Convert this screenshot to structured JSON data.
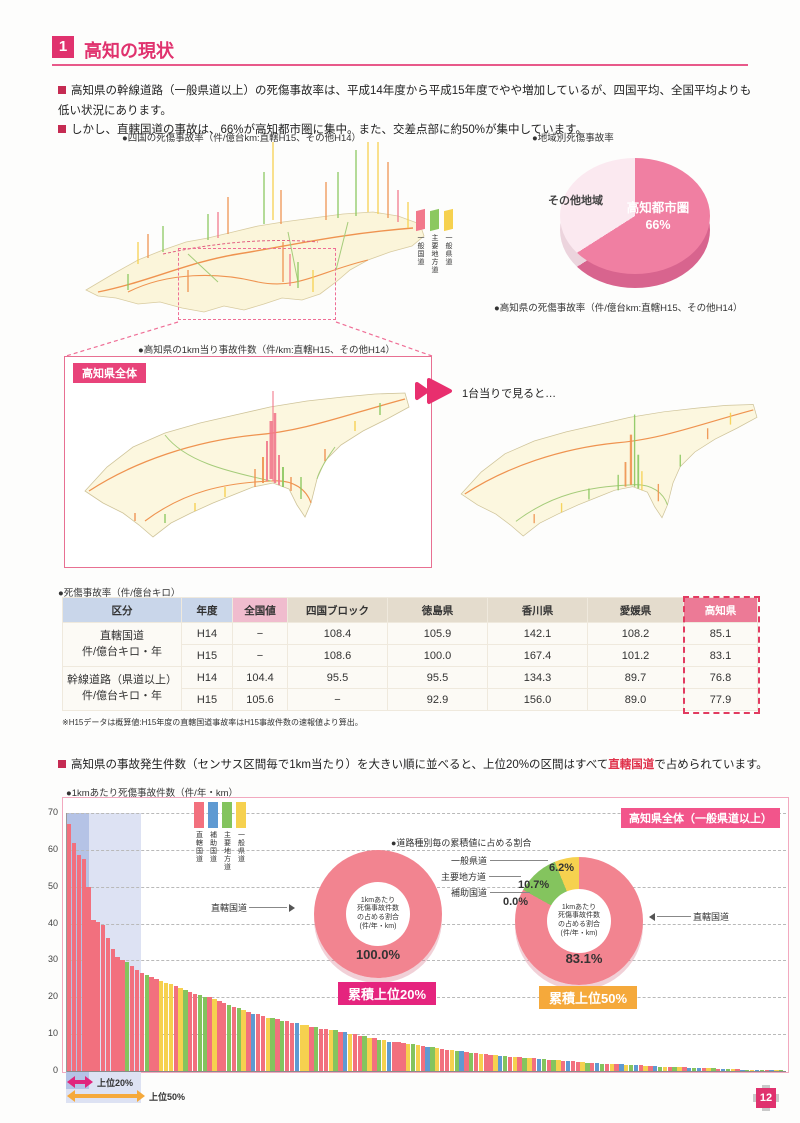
{
  "page": {
    "number": "12"
  },
  "header": {
    "section_no": "1",
    "title": "高知の現状"
  },
  "intro": {
    "bullets": [
      "高知県の幹線道路（一般県道以上）の死傷事故率は、平成14年度から平成15年度でやや増加しているが、四国平均、全国平均よりも低い状況にあります。",
      "しかし、直轄国道の事故は、66%が高知都市圏に集中。また、交差点部に約50%が集中しています。"
    ]
  },
  "top_figures": {
    "shikoku_map_title": "●四国の死傷事故率（件/億台km:直轄H15、その他H14）",
    "map_legend": [
      {
        "label": "一般国道",
        "color": "#f2798c"
      },
      {
        "label": "主要地方道",
        "color": "#8cc860"
      },
      {
        "label": "一般県道",
        "color": "#f6d14f"
      }
    ],
    "pie_title": "●地域別死傷事故率",
    "pie_caption": "●高知県の死傷事故率（件/億台km:直轄H15、その他H14）"
  },
  "kochi_figure": {
    "title": "●高知県の1km当り事故件数（件/km:直轄H15、その他H14）",
    "box_label": "高知県全体",
    "arrow_note": "1台当りで見ると…"
  },
  "table": {
    "title": "●死傷事故率（件/億台キロ）",
    "headers": [
      "区分",
      "年度",
      "全国値",
      "四国ブロック",
      "徳島県",
      "香川県",
      "愛媛県",
      "高知県"
    ],
    "row_groups": [
      {
        "label": "直轄国道",
        "sub": "件/億台キロ・年",
        "rows": [
          {
            "year": "H14",
            "values": [
              "−",
              "108.4",
              "105.9",
              "142.1",
              "108.2",
              "85.1"
            ]
          },
          {
            "year": "H15",
            "values": [
              "−",
              "108.6",
              "100.0",
              "167.4",
              "101.2",
              "83.1"
            ]
          }
        ]
      },
      {
        "label": "幹線道路（県道以上）",
        "sub": "件/億台キロ・年",
        "rows": [
          {
            "year": "H14",
            "values": [
              "104.4",
              "95.5",
              "95.5",
              "134.3",
              "89.7",
              "76.8"
            ]
          },
          {
            "year": "H15",
            "values": [
              "105.6",
              "−",
              "92.9",
              "156.0",
              "89.0",
              "77.9"
            ]
          }
        ]
      }
    ],
    "footnote": "※H15データは概算値:H15年度の直轄国道事故率はH15事故件数の速報値より算出。"
  },
  "bottom_section": {
    "bullet_pre": "高知県の事故発生件数（センサス区間毎で1km当たり）を大きい順に並べると、上位20%の区間はすべて",
    "bullet_em": "直轄国道",
    "bullet_post": "で占められています。",
    "chart_label": "●1kmあたり死傷事故件数（件/年・km）",
    "chart_badge": "高知県全体（一般県道以上）",
    "donut_title": "●道路種別毎の累積値に占める割合",
    "range20_label": "上位20%",
    "range50_label": "上位50%"
  },
  "chart_data": {
    "region_pie": {
      "type": "pie",
      "title": "地域別死傷事故率",
      "slices": [
        {
          "label": "高知都市圏",
          "pct": 66,
          "color": "#f07fa2"
        },
        {
          "label": "その他地域",
          "pct": 34,
          "color": "#fbe9f0"
        }
      ],
      "slices_side": [
        {
          "pct": 66,
          "color": "#d8648e"
        },
        {
          "pct": 34,
          "color": "#ecd4dd"
        }
      ],
      "main_label": "高知都市圏",
      "main_pct_label": "66%",
      "other_label": "その他地域"
    },
    "accident_bars": {
      "type": "bar",
      "title": "1kmあたり死傷事故件数（件/年・km）",
      "ylim": [
        0,
        70
      ],
      "yticks": [
        70,
        60,
        50,
        40,
        30,
        20,
        10,
        0
      ],
      "grid": true,
      "palette": {
        "r": "#f2707e",
        "b": "#5f9ad2",
        "g": "#84c45e",
        "y": "#f6d14f"
      },
      "legend": [
        {
          "key": "r",
          "label": "直轄国道",
          "color": "#f2707e"
        },
        {
          "key": "b",
          "label": "補助国道",
          "color": "#5f9ad2"
        },
        {
          "key": "g",
          "label": "主要地方道",
          "color": "#84c45e"
        },
        {
          "key": "y",
          "label": "一般県道",
          "color": "#f6d14f"
        }
      ],
      "values": [
        67,
        62,
        58.5,
        57.5,
        50,
        41,
        40.5,
        39.5,
        36,
        33,
        31,
        30,
        29.5,
        28.5,
        27.5,
        26.5,
        26,
        25.5,
        25,
        24.5,
        24,
        23.5,
        23,
        22.5,
        22,
        21.5,
        21,
        20.5,
        20,
        20,
        19.5,
        19,
        18.5,
        18,
        17.5,
        17,
        16.5,
        16,
        15.5,
        15.5,
        15,
        14.5,
        14.5,
        14,
        13.5,
        13.5,
        13,
        13,
        12.5,
        12.5,
        12,
        12,
        11.5,
        11.5,
        11,
        11,
        10.5,
        10.5,
        10,
        10,
        9.5,
        9.5,
        9,
        9,
        8.5,
        8.5,
        8,
        8,
        7.8,
        7.6,
        7.4,
        7.2,
        7,
        6.8,
        6.6,
        6.4,
        6.2,
        6,
        5.8,
        5.6,
        5.5,
        5.3,
        5.2,
        5,
        4.9,
        4.7,
        4.6,
        4.4,
        4.3,
        4.2,
        4,
        3.9,
        3.8,
        3.7,
        3.6,
        3.5,
        3.4,
        3.3,
        3.2,
        3.1,
        3,
        2.9,
        2.8,
        2.7,
        2.6,
        2.5,
        2.4,
        2.3,
        2.2,
        2.1,
        2,
        2,
        1.9,
        1.8,
        1.8,
        1.7,
        1.6,
        1.6,
        1.5,
        1.4,
        1.4,
        1.3,
        1.2,
        1.2,
        1.1,
        1.1,
        1,
        1,
        0.9,
        0.9,
        0.8,
        0.8,
        0.7,
        0.7,
        0.6,
        0.6,
        0.5,
        0.5,
        0.5,
        0.4,
        0.4,
        0.4,
        0.3,
        0.3,
        0.3,
        0.3,
        0.2,
        0.2
      ],
      "colors": "rrrrrrrrrrrrgrrrgrryyyrygrrggryrrgrgyrbrrygrgrrbyyrgrrygrbyrrgyrgybrrrygyrbgyrrygbrgryrrybgryrgyrbgrgyrbrrygrbgryrbygbryrbgyrgyrbgbrygrbgyrbgybgrbyg",
      "x_annotations": [
        {
          "label": "上位20%",
          "color": "#e0257d"
        },
        {
          "label": "上位50%",
          "color": "#f5a93b"
        }
      ]
    },
    "donut_top20": {
      "type": "pie",
      "badge": "累積上位20%",
      "badge_color": "#e5247e",
      "center_lines": [
        "1kmあたり",
        "死傷事故件数",
        "の占める割合",
        "(件/年・km)"
      ],
      "slices": [
        {
          "label": "直轄国道",
          "pct": 100,
          "color": "#f28490"
        }
      ],
      "value_label": "100.0%",
      "callout": "直轄国道"
    },
    "donut_top50": {
      "type": "pie",
      "badge": "累積上位50%",
      "badge_color": "#f5a93b",
      "center_lines": [
        "1kmあたり",
        "死傷事故件数",
        "の占める割合",
        "(件/年・km)"
      ],
      "slices": [
        {
          "label": "直轄国道",
          "pct": 83.1,
          "color": "#f28490"
        },
        {
          "label": "補助国道",
          "pct": 0.0,
          "color": "#5f9ad2"
        },
        {
          "label": "主要地方道",
          "pct": 10.7,
          "color": "#84c45e"
        },
        {
          "label": "一般県道",
          "pct": 6.2,
          "color": "#f6d14f"
        }
      ],
      "value_labels": {
        "chokkatsu": "83.1%",
        "shuyo": "10.7%",
        "ippan": "6.2%",
        "hojo": "0.0%"
      },
      "callouts": {
        "chokkatsu": "直轄国道",
        "shuyo": "主要地方道",
        "ippan": "一般県道",
        "hojo": "補助国道"
      }
    }
  }
}
